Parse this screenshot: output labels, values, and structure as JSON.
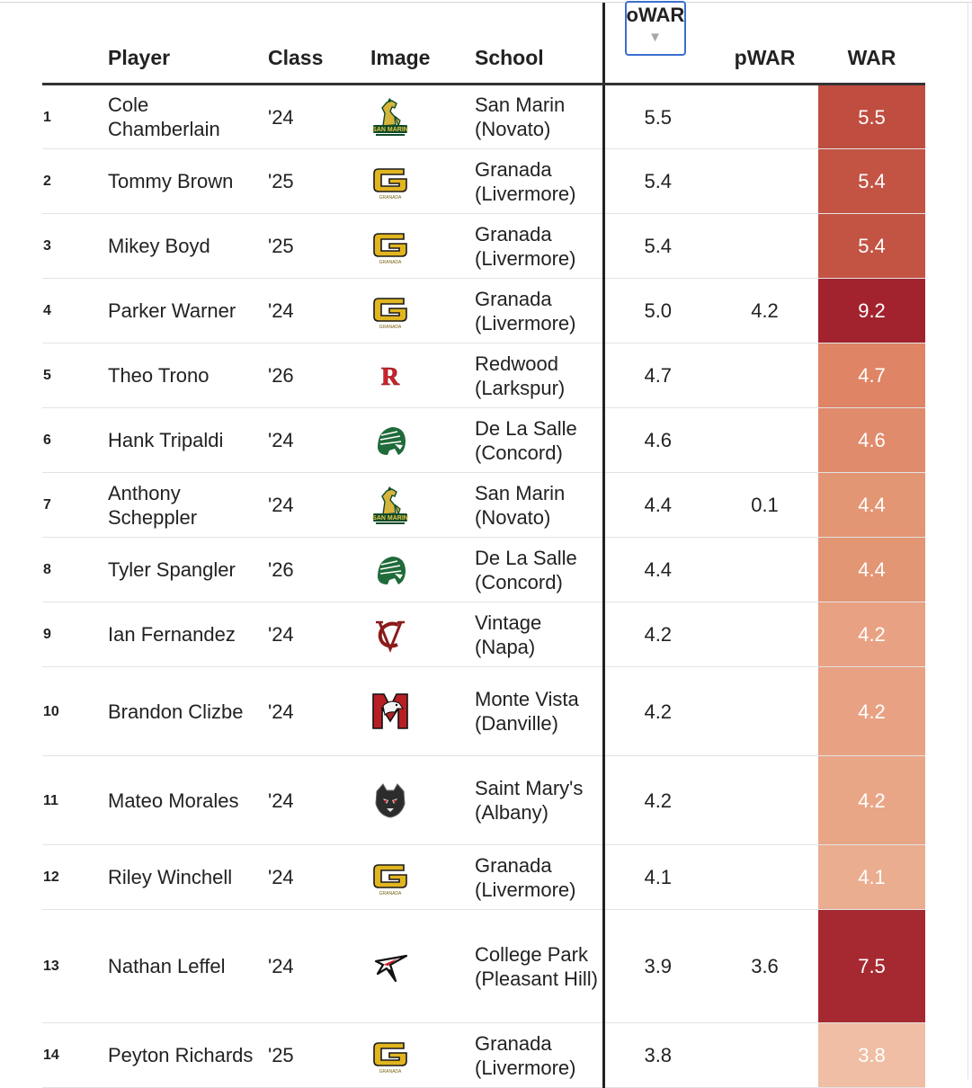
{
  "columns": {
    "rank": "",
    "player": "Player",
    "class": "Class",
    "image": "Image",
    "school": "School",
    "owar": "oWAR",
    "pwar": "pWAR",
    "war": "WAR"
  },
  "sort": {
    "column": "oWAR",
    "direction": "descending",
    "indicator": "▼"
  },
  "rows": [
    {
      "rank": "1",
      "player": "Cole Chamberlain",
      "class": "'24",
      "logo": "san-marin-logo",
      "school": "San Marin (Novato)",
      "owar": "5.5",
      "pwar": "",
      "war": "5.5",
      "war_color": "#c04e40"
    },
    {
      "rank": "2",
      "player": "Tommy Brown",
      "class": "'25",
      "logo": "granada-logo",
      "school": "Granada (Livermore)",
      "owar": "5.4",
      "pwar": "",
      "war": "5.4",
      "war_color": "#c35444"
    },
    {
      "rank": "3",
      "player": "Mikey Boyd",
      "class": "'25",
      "logo": "granada-logo",
      "school": "Granada (Livermore)",
      "owar": "5.4",
      "pwar": "",
      "war": "5.4",
      "war_color": "#c35444"
    },
    {
      "rank": "4",
      "player": "Parker Warner",
      "class": "'24",
      "logo": "granada-logo",
      "school": "Granada (Livermore)",
      "owar": "5.0",
      "pwar": "4.2",
      "war": "9.2",
      "war_color": "#a2232e"
    },
    {
      "rank": "5",
      "player": "Theo Trono",
      "class": "'26",
      "logo": "redwood-logo",
      "school": "Redwood (Larkspur)",
      "owar": "4.7",
      "pwar": "",
      "war": "4.7",
      "war_color": "#df8465"
    },
    {
      "rank": "6",
      "player": "Hank Tripaldi",
      "class": "'24",
      "logo": "de-la-salle-logo",
      "school": "De La Salle (Concord)",
      "owar": "4.6",
      "pwar": "",
      "war": "4.6",
      "war_color": "#e08b6c"
    },
    {
      "rank": "7",
      "player": "Anthony Scheppler",
      "class": "'24",
      "logo": "san-marin-logo",
      "school": "San Marin (Novato)",
      "owar": "4.4",
      "pwar": "0.1",
      "war": "4.4",
      "war_color": "#e39674"
    },
    {
      "rank": "8",
      "player": "Tyler Spangler",
      "class": "'26",
      "logo": "de-la-salle-logo",
      "school": "De La Salle (Concord)",
      "owar": "4.4",
      "pwar": "",
      "war": "4.4",
      "war_color": "#e39674"
    },
    {
      "rank": "9",
      "player": "Ian Fernandez",
      "class": "'24",
      "logo": "vintage-logo",
      "school": "Vintage (Napa)",
      "owar": "4.2",
      "pwar": "",
      "war": "4.2",
      "war_color": "#e8a283"
    },
    {
      "rank": "10",
      "player": "Brandon Clizbe",
      "class": "'24",
      "logo": "monte-vista-logo",
      "school": "Monte Vista (Danville)",
      "owar": "4.2",
      "pwar": "",
      "war": "4.2",
      "war_color": "#e8a283"
    },
    {
      "rank": "11",
      "player": "Mateo Morales",
      "class": "'24",
      "logo": "saint-marys-logo",
      "school": "Saint Mary's (Albany)",
      "owar": "4.2",
      "pwar": "",
      "war": "4.2",
      "war_color": "#e9a687"
    },
    {
      "rank": "12",
      "player": "Riley Winchell",
      "class": "'24",
      "logo": "granada-logo",
      "school": "Granada (Livermore)",
      "owar": "4.1",
      "pwar": "",
      "war": "4.1",
      "war_color": "#ebad8f"
    },
    {
      "rank": "13",
      "player": "Nathan Leffel",
      "class": "'24",
      "logo": "college-park-logo",
      "school": "College Park (Pleasant Hill)",
      "owar": "3.9",
      "pwar": "3.6",
      "war": "7.5",
      "war_color": "#a62931"
    },
    {
      "rank": "14",
      "player": "Peyton Richards",
      "class": "'25",
      "logo": "granada-logo",
      "school": "Granada (Livermore)",
      "owar": "3.8",
      "pwar": "",
      "war": "3.8",
      "war_color": "#efbea4"
    }
  ]
}
